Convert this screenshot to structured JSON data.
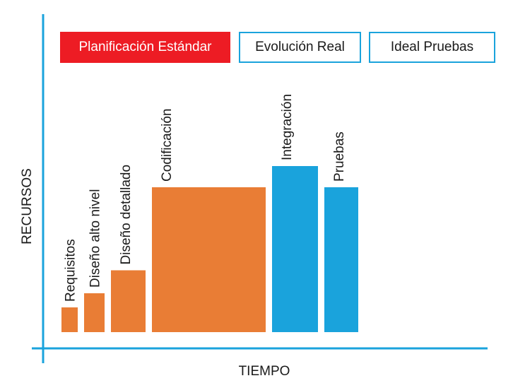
{
  "tabs": [
    {
      "label": "Planificación Estándar",
      "active": true
    },
    {
      "label": "Evolución Real",
      "active": false
    },
    {
      "label": "Ideal Pruebas",
      "active": false
    }
  ],
  "colors": {
    "axis": "#1aa3dc",
    "design_phase": "#e97d35",
    "test_phase": "#1aa3dc",
    "active_tab": "#ed1c24"
  },
  "chart_data": {
    "type": "bar",
    "xlabel": "TIEMPO",
    "ylabel": "RECURSOS",
    "ylim": [
      0,
      100
    ],
    "series": [
      {
        "name": "Requisitos",
        "start": 0,
        "duration": 2.3,
        "value": 14,
        "phase": "design"
      },
      {
        "name": "Diseño alto nivel",
        "start": 3.2,
        "duration": 2.9,
        "value": 22,
        "phase": "design"
      },
      {
        "name": "Diseño detallado",
        "start": 7.0,
        "duration": 4.9,
        "value": 35,
        "phase": "design"
      },
      {
        "name": "Codificación",
        "start": 12.8,
        "duration": 16.1,
        "value": 82,
        "phase": "design"
      },
      {
        "name": "Integración",
        "start": 29.8,
        "duration": 6.5,
        "value": 94,
        "phase": "test"
      },
      {
        "name": "Pruebas",
        "start": 37.2,
        "duration": 4.8,
        "value": 82,
        "phase": "test"
      }
    ]
  }
}
